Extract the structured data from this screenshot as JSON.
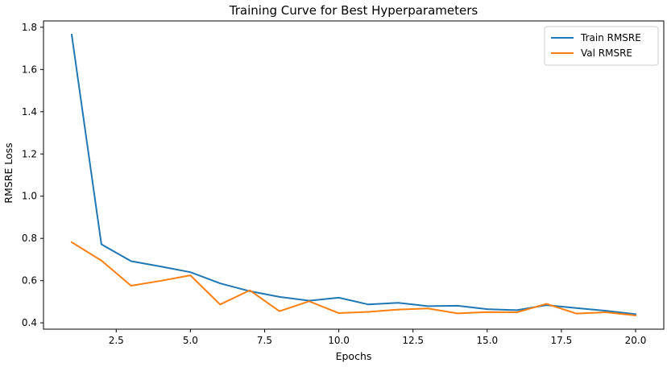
{
  "chart_data": {
    "type": "line",
    "title": "Training Curve for Best Hyperparameters",
    "xlabel": "Epochs",
    "ylabel": "RMSRE Loss",
    "xlim": [
      0.05,
      20.95
    ],
    "ylim": [
      0.37,
      1.83
    ],
    "xticks": [
      2.5,
      5.0,
      7.5,
      10.0,
      12.5,
      15.0,
      17.5,
      20.0
    ],
    "xtick_labels": [
      "2.5",
      "5.0",
      "7.5",
      "10.0",
      "12.5",
      "15.0",
      "17.5",
      "20.0"
    ],
    "yticks": [
      0.4,
      0.6,
      0.8,
      1.0,
      1.2,
      1.4,
      1.6,
      1.8
    ],
    "ytick_labels": [
      "0.4",
      "0.6",
      "0.8",
      "1.0",
      "1.2",
      "1.4",
      "1.6",
      "1.8"
    ],
    "grid": false,
    "legend_position": "top-right",
    "x": [
      1,
      2,
      3,
      4,
      5,
      6,
      7,
      8,
      9,
      10,
      11,
      12,
      13,
      14,
      15,
      16,
      17,
      18,
      19,
      20
    ],
    "series": [
      {
        "name": "Train RMSRE",
        "color": "#1f77b4",
        "values": [
          1.765,
          0.772,
          0.692,
          0.667,
          0.64,
          0.587,
          0.55,
          0.523,
          0.505,
          0.519,
          0.487,
          0.495,
          0.479,
          0.481,
          0.465,
          0.46,
          0.484,
          0.47,
          0.457,
          0.441
        ]
      },
      {
        "name": "Val RMSRE",
        "color": "#ff7f0e",
        "values": [
          0.782,
          0.695,
          0.576,
          0.599,
          0.625,
          0.487,
          0.554,
          0.455,
          0.502,
          0.446,
          0.452,
          0.463,
          0.468,
          0.445,
          0.451,
          0.45,
          0.49,
          0.444,
          0.45,
          0.435
        ]
      }
    ]
  }
}
